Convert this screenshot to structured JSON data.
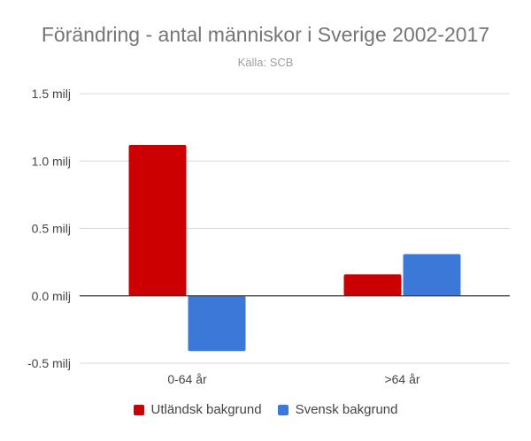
{
  "chart_data": {
    "type": "bar",
    "title": "Förändring - antal människor i Sverige 2002-2017",
    "subtitle": "Källa: SCB",
    "categories": [
      "0-64 år",
      ">64 år"
    ],
    "series": [
      {
        "name": "Utländsk bakgrund",
        "color": "#cc0000",
        "values": [
          1.12,
          0.16
        ]
      },
      {
        "name": "Svensk bakgrund",
        "color": "#3c78d8",
        "values": [
          -0.41,
          0.31
        ]
      }
    ],
    "ylim": [
      -0.5,
      1.5
    ],
    "yticks": [
      {
        "value": 1.5,
        "label": "1.5 milj"
      },
      {
        "value": 1.0,
        "label": "1.0 milj"
      },
      {
        "value": 0.5,
        "label": "0.5 milj"
      },
      {
        "value": 0.0,
        "label": "0.0 milj"
      },
      {
        "value": -0.5,
        "label": "-0.5 milj"
      }
    ],
    "grid": true,
    "legend_position": "bottom",
    "gridline_color": "#d9d9d9",
    "baseline_color": "#333333"
  }
}
